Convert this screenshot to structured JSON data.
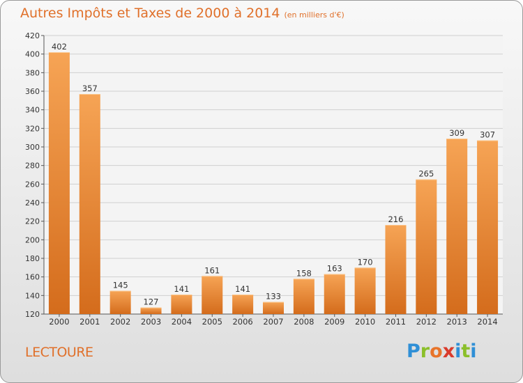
{
  "header": {
    "title": "Autres Impôts et Taxes de 2000 à 2014",
    "subtitle": "(en milliers d'€)"
  },
  "commune": "LECTOURE",
  "logo": {
    "text": "Proxiti",
    "letters": [
      "P",
      "r",
      "o",
      "x",
      "i",
      "t",
      "i"
    ],
    "colors": [
      "#2f8fd6",
      "#8bbf2a",
      "#e8742a",
      "#d93a2b",
      "#2f8fd6",
      "#8bbf2a",
      "#2f8fd6"
    ]
  },
  "colors": {
    "accent": "#e0702a",
    "bar_light": "#f6a455",
    "bar_dark": "#d46c1c",
    "grid": "#cfcfcf",
    "text": "#333333"
  },
  "chart_data": {
    "type": "bar",
    "title": "Autres Impôts et Taxes de 2000 à 2014",
    "subtitle": "(en milliers d'€)",
    "categories": [
      "2000",
      "2001",
      "2002",
      "2003",
      "2004",
      "2005",
      "2006",
      "2007",
      "2008",
      "2009",
      "2010",
      "2011",
      "2012",
      "2013",
      "2014"
    ],
    "values": [
      402,
      357,
      145,
      127,
      141,
      161,
      141,
      133,
      158,
      163,
      170,
      216,
      265,
      309,
      307
    ],
    "ylim": [
      120,
      420
    ],
    "yticks": [
      120,
      140,
      160,
      180,
      200,
      220,
      240,
      260,
      280,
      300,
      320,
      340,
      360,
      380,
      400,
      420
    ],
    "grid": true,
    "xlabel": "",
    "ylabel": ""
  }
}
